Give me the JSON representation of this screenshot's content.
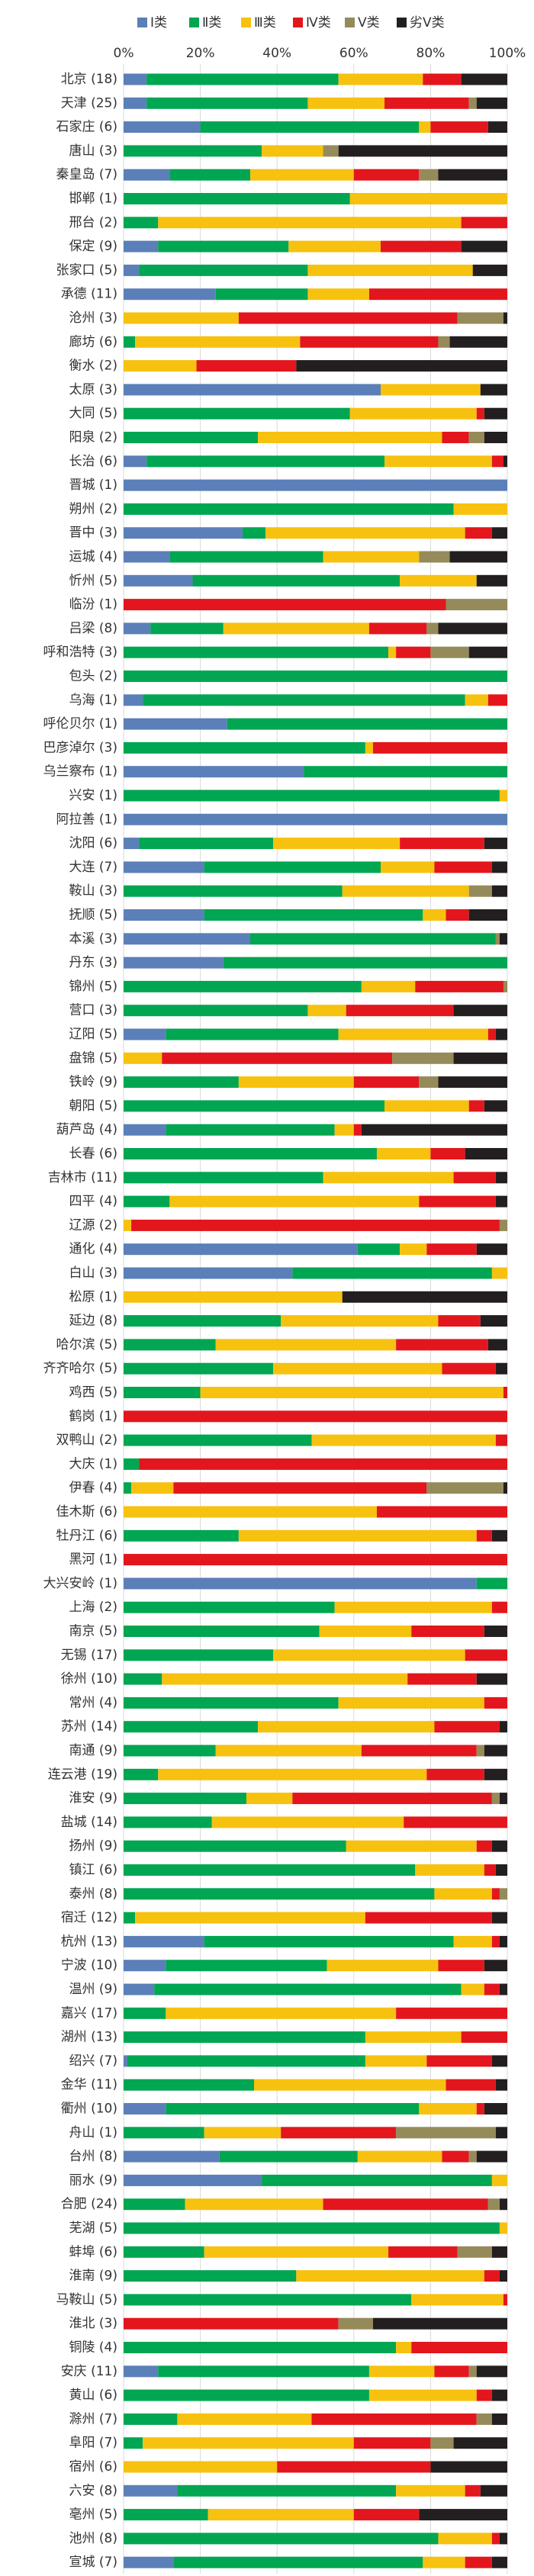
{
  "chart_data": {
    "type": "bar",
    "orientation": "horizontal",
    "stacked": true,
    "grid": true,
    "legend": "top",
    "xlim": [
      0,
      100
    ],
    "xticks": [
      {
        "value": 0,
        "label": "0%"
      },
      {
        "value": 20,
        "label": "20%"
      },
      {
        "value": 40,
        "label": "40%"
      },
      {
        "value": 60,
        "label": "60%"
      },
      {
        "value": 80,
        "label": "80%"
      },
      {
        "value": 100,
        "label": "100%"
      }
    ],
    "categories": [
      "北京 (18)",
      "天津 (25)",
      "石家庄 (6)",
      "唐山 (3)",
      "秦皇岛 (7)",
      "邯郸 (1)",
      "邢台 (2)",
      "保定 (9)",
      "张家口 (5)",
      "承德 (11)",
      "沧州 (3)",
      "廊坊 (6)",
      "衡水 (2)",
      "太原 (3)",
      "大同 (5)",
      "阳泉 (2)",
      "长治 (6)",
      "晋城 (1)",
      "朔州 (2)",
      "晋中 (3)",
      "运城 (4)",
      "忻州 (5)",
      "临汾 (1)",
      "吕梁 (8)",
      "呼和浩特 (3)",
      "包头 (2)",
      "乌海 (1)",
      "呼伦贝尔 (1)",
      "巴彦淖尔 (3)",
      "乌兰察布 (1)",
      "兴安 (1)",
      "阿拉善 (1)",
      "沈阳 (6)",
      "大连 (7)",
      "鞍山 (3)",
      "抚顺 (5)",
      "本溪 (3)",
      "丹东 (3)",
      "锦州 (5)",
      "营口 (3)",
      "辽阳 (5)",
      "盘锦 (5)",
      "铁岭 (9)",
      "朝阳 (5)",
      "葫芦岛 (4)",
      "长春 (6)",
      "吉林市 (11)",
      "四平 (4)",
      "辽源 (2)",
      "通化 (4)",
      "白山 (3)",
      "松原 (1)",
      "延边 (8)",
      "哈尔滨 (5)",
      "齐齐哈尔 (5)",
      "鸡西 (5)",
      "鹤岗 (1)",
      "双鸭山 (2)",
      "大庆 (1)",
      "伊春 (4)",
      "佳木斯 (6)",
      "牡丹江 (6)",
      "黑河 (1)",
      "大兴安岭 (1)",
      "上海 (2)",
      "南京 (5)",
      "无锡 (17)",
      "徐州 (10)",
      "常州 (4)",
      "苏州 (14)",
      "南通 (9)",
      "连云港 (19)",
      "淮安 (9)",
      "盐城 (14)",
      "扬州 (9)",
      "镇江 (6)",
      "泰州 (8)",
      "宿迁 (12)",
      "杭州 (13)",
      "宁波 (10)",
      "温州 (9)",
      "嘉兴 (17)",
      "湖州 (13)",
      "绍兴 (7)",
      "金华 (11)",
      "衢州 (10)",
      "舟山 (1)",
      "台州 (8)",
      "丽水 (9)",
      "合肥 (24)",
      "芜湖 (5)",
      "蚌埠 (6)",
      "淮南 (9)",
      "马鞍山 (5)",
      "淮北 (3)",
      "铜陵 (4)",
      "安庆 (11)",
      "黄山 (6)",
      "滁州 (7)",
      "阜阳 (7)",
      "宿州 (6)",
      "六安 (8)",
      "亳州 (5)",
      "池州 (8)",
      "宣城 (7)"
    ],
    "series": [
      {
        "name": "Ⅰ类",
        "color": "#5b7fb8",
        "values": [
          6,
          6,
          20,
          0,
          12,
          0,
          0,
          9,
          4,
          24,
          0,
          0,
          0,
          67,
          0,
          0,
          6,
          100,
          0,
          31,
          12,
          18,
          0,
          7,
          0,
          0,
          5,
          27,
          0,
          47,
          0,
          100,
          4,
          21,
          0,
          21,
          33,
          26,
          0,
          0,
          11,
          0,
          0,
          0,
          11,
          0,
          0,
          0,
          0,
          61,
          44,
          0,
          0,
          0,
          0,
          0,
          0,
          0,
          0,
          0,
          0,
          0,
          0,
          92,
          0,
          0,
          0,
          0,
          0,
          0,
          0,
          0,
          0,
          0,
          0,
          0,
          0,
          0,
          21,
          11,
          8,
          0,
          0,
          1,
          0,
          11,
          0,
          25,
          36,
          0,
          0,
          0,
          0,
          0,
          0,
          0,
          9,
          0,
          0,
          0,
          0,
          14,
          0,
          0,
          13
        ]
      },
      {
        "name": "Ⅱ类",
        "color": "#00a651",
        "values": [
          50,
          42,
          57,
          36,
          21,
          59,
          9,
          34,
          44,
          24,
          0,
          3,
          0,
          0,
          59,
          35,
          62,
          0,
          86,
          6,
          40,
          54,
          0,
          19,
          69,
          100,
          84,
          73,
          63,
          53,
          98,
          0,
          35,
          46,
          57,
          57,
          64,
          74,
          62,
          48,
          45,
          0,
          30,
          68,
          44,
          66,
          52,
          12,
          0,
          11,
          52,
          0,
          41,
          24,
          39,
          20,
          0,
          49,
          4,
          2,
          0,
          30,
          0,
          8,
          55,
          51,
          39,
          10,
          56,
          35,
          24,
          9,
          32,
          23,
          58,
          76,
          81,
          3,
          65,
          42,
          80,
          11,
          63,
          62,
          34,
          66,
          21,
          36,
          60,
          16,
          98,
          21,
          45,
          75,
          0,
          71,
          55,
          64,
          14,
          5,
          0,
          57,
          22,
          82,
          65
        ]
      },
      {
        "name": "Ⅲ类",
        "color": "#f7c10f",
        "values": [
          22,
          20,
          3,
          16,
          27,
          41,
          79,
          24,
          43,
          16,
          30,
          43,
          19,
          26,
          33,
          48,
          28,
          0,
          14,
          52,
          25,
          20,
          0,
          38,
          2,
          0,
          6,
          0,
          2,
          0,
          2,
          0,
          33,
          14,
          33,
          6,
          0,
          0,
          14,
          10,
          39,
          10,
          30,
          22,
          5,
          14,
          34,
          65,
          2,
          7,
          4,
          57,
          41,
          47,
          44,
          79,
          0,
          48,
          0,
          11,
          66,
          62,
          0,
          0,
          41,
          24,
          50,
          64,
          38,
          46,
          38,
          70,
          12,
          50,
          34,
          18,
          15,
          60,
          10,
          29,
          6,
          60,
          25,
          16,
          50,
          15,
          20,
          22,
          4,
          36,
          2,
          48,
          49,
          24,
          0,
          4,
          17,
          28,
          35,
          55,
          40,
          18,
          38,
          14,
          11
        ]
      },
      {
        "name": "Ⅳ类",
        "color": "#e3161d",
        "values": [
          10,
          22,
          15,
          0,
          17,
          0,
          12,
          21,
          0,
          36,
          57,
          36,
          26,
          0,
          2,
          7,
          3,
          0,
          0,
          7,
          0,
          0,
          84,
          15,
          9,
          0,
          5,
          0,
          35,
          0,
          0,
          0,
          22,
          15,
          0,
          6,
          0,
          0,
          23,
          28,
          2,
          60,
          17,
          4,
          2,
          9,
          11,
          20,
          96,
          13,
          0,
          0,
          11,
          24,
          14,
          1,
          100,
          3,
          96,
          66,
          34,
          4,
          100,
          0,
          4,
          19,
          11,
          18,
          6,
          17,
          30,
          15,
          52,
          27,
          4,
          3,
          2,
          33,
          2,
          12,
          4,
          29,
          12,
          17,
          13,
          2,
          30,
          7,
          0,
          43,
          0,
          18,
          4,
          1,
          56,
          25,
          9,
          4,
          43,
          20,
          40,
          4,
          17,
          2,
          7
        ]
      },
      {
        "name": "Ⅴ类",
        "color": "#958b5a",
        "values": [
          0,
          2,
          0,
          4,
          5,
          0,
          0,
          0,
          0,
          0,
          12,
          3,
          0,
          0,
          0,
          4,
          0,
          0,
          0,
          0,
          8,
          0,
          16,
          3,
          10,
          0,
          0,
          0,
          0,
          0,
          0,
          0,
          0,
          0,
          6,
          0,
          1,
          0,
          1,
          0,
          0,
          16,
          5,
          0,
          0,
          0,
          0,
          0,
          2,
          0,
          0,
          0,
          0,
          0,
          0,
          0,
          0,
          0,
          0,
          20,
          0,
          0,
          0,
          0,
          0,
          0,
          0,
          0,
          0,
          0,
          2,
          0,
          2,
          0,
          0,
          0,
          2,
          0,
          0,
          0,
          0,
          0,
          0,
          0,
          0,
          0,
          26,
          2,
          0,
          3,
          0,
          9,
          0,
          0,
          9,
          0,
          2,
          0,
          4,
          6,
          0,
          0,
          0,
          0,
          0
        ]
      },
      {
        "name": "劣Ⅴ类",
        "color": "#231f20",
        "values": [
          12,
          8,
          5,
          44,
          18,
          0,
          0,
          12,
          9,
          0,
          1,
          15,
          55,
          7,
          6,
          6,
          1,
          0,
          0,
          4,
          15,
          8,
          0,
          18,
          10,
          0,
          0,
          0,
          0,
          0,
          0,
          0,
          6,
          4,
          4,
          10,
          2,
          0,
          0,
          14,
          3,
          14,
          18,
          6,
          38,
          11,
          3,
          3,
          0,
          8,
          0,
          43,
          7,
          5,
          3,
          0,
          0,
          0,
          0,
          1,
          0,
          4,
          0,
          0,
          0,
          6,
          0,
          8,
          0,
          2,
          6,
          6,
          2,
          0,
          4,
          3,
          0,
          4,
          2,
          6,
          2,
          0,
          0,
          4,
          3,
          6,
          3,
          8,
          0,
          2,
          0,
          4,
          2,
          0,
          35,
          0,
          8,
          4,
          4,
          14,
          20,
          7,
          23,
          2,
          4
        ]
      }
    ]
  }
}
